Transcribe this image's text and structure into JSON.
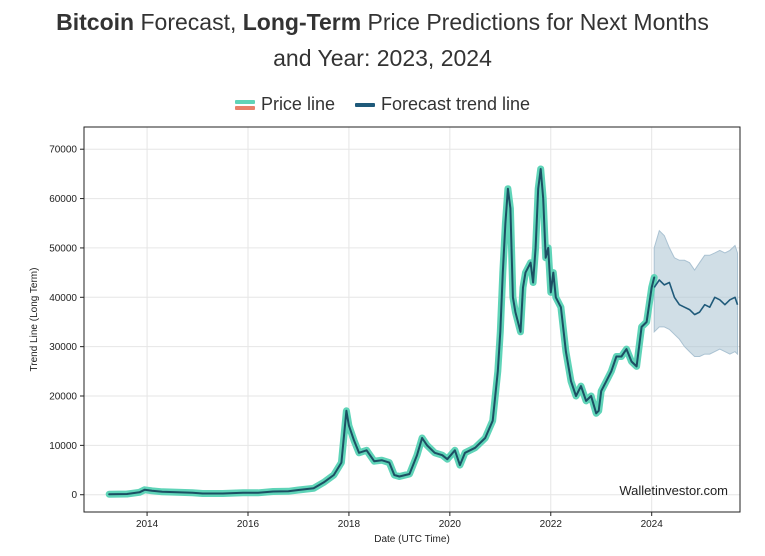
{
  "title": {
    "bold1": "Bitcoin",
    "mid1": " Forecast, ",
    "bold2": "Long-Term",
    "rest1": " Price Predictions for Next Months",
    "line2": "and Year: 2023, 2024"
  },
  "watermark": "Walletinvestor.com",
  "colors": {
    "price_outer": "#5fd4b8",
    "price_inner": "#1c4f63",
    "price_legend_top": "#5fd4b8",
    "price_legend_bottom": "#e8806a",
    "forecast_line": "#1f5a7a",
    "forecast_band": "#aac2d2"
  },
  "chart_data": {
    "type": "line",
    "title": "Bitcoin Forecast, Long-Term Price Predictions for Next Months and Year: 2023, 2024",
    "xlabel": "Date (UTC Time)",
    "ylabel": "Trend Line (Long Term)",
    "x_range": [
      2012.75,
      2025.75
    ],
    "ylim": [
      -3500,
      74500
    ],
    "xticks": [
      2014,
      2016,
      2018,
      2020,
      2022,
      2024
    ],
    "xtick_labels": [
      "2014",
      "2016",
      "2018",
      "2020",
      "2022",
      "2024"
    ],
    "yticks": [
      0,
      10000,
      20000,
      30000,
      40000,
      50000,
      60000,
      70000
    ],
    "ytick_labels": [
      "0",
      "10000",
      "20000",
      "30000",
      "40000",
      "50000",
      "60000",
      "70000"
    ],
    "grid": true,
    "legend_position": "top-center",
    "legend": [
      "Price line",
      "Forecast trend line"
    ],
    "series": [
      {
        "name": "Price line",
        "x": [
          2013.25,
          2013.6,
          2013.85,
          2013.95,
          2014.1,
          2014.3,
          2014.6,
          2014.9,
          2015.1,
          2015.5,
          2015.9,
          2016.2,
          2016.5,
          2016.8,
          2017.0,
          2017.3,
          2017.5,
          2017.7,
          2017.85,
          2017.95,
          2018.0,
          2018.1,
          2018.2,
          2018.35,
          2018.5,
          2018.65,
          2018.8,
          2018.9,
          2019.0,
          2019.2,
          2019.35,
          2019.45,
          2019.55,
          2019.7,
          2019.85,
          2019.95,
          2020.1,
          2020.2,
          2020.3,
          2020.5,
          2020.7,
          2020.85,
          2020.95,
          2021.0,
          2021.05,
          2021.1,
          2021.15,
          2021.2,
          2021.25,
          2021.3,
          2021.4,
          2021.45,
          2021.5,
          2021.6,
          2021.65,
          2021.7,
          2021.75,
          2021.8,
          2021.85,
          2021.9,
          2021.95,
          2022.0,
          2022.05,
          2022.1,
          2022.2,
          2022.3,
          2022.4,
          2022.5,
          2022.6,
          2022.7,
          2022.8,
          2022.9,
          2022.95,
          2023.0,
          2023.1,
          2023.2,
          2023.3,
          2023.4,
          2023.5,
          2023.6,
          2023.7,
          2023.8,
          2023.9,
          2024.0,
          2024.05
        ],
        "values": [
          100,
          150,
          500,
          1000,
          800,
          600,
          500,
          400,
          250,
          250,
          400,
          400,
          650,
          700,
          950,
          1300,
          2500,
          4000,
          6500,
          17000,
          14000,
          11000,
          8500,
          9000,
          6800,
          7000,
          6500,
          4000,
          3700,
          4200,
          8000,
          11500,
          10000,
          8500,
          8000,
          7200,
          9000,
          6000,
          8500,
          9500,
          11500,
          15000,
          25000,
          33000,
          45000,
          55000,
          62000,
          58000,
          40000,
          37000,
          33000,
          42000,
          45000,
          47000,
          43000,
          50000,
          62000,
          66000,
          60000,
          48000,
          50000,
          41000,
          45000,
          40000,
          38000,
          29000,
          23000,
          20000,
          22000,
          19000,
          20000,
          16500,
          17000,
          21000,
          23000,
          25000,
          28000,
          28000,
          29500,
          27000,
          26000,
          34000,
          35000,
          42000,
          44000
        ]
      },
      {
        "name": "Forecast trend line",
        "x": [
          2024.05,
          2024.15,
          2024.25,
          2024.35,
          2024.45,
          2024.55,
          2024.65,
          2024.75,
          2024.85,
          2024.95,
          2025.05,
          2025.15,
          2025.25,
          2025.35,
          2025.45,
          2025.55,
          2025.65,
          2025.7
        ],
        "values": [
          42000,
          43500,
          42500,
          43000,
          40000,
          38500,
          38000,
          37500,
          36500,
          37000,
          38500,
          38000,
          40000,
          39500,
          38500,
          39500,
          40000,
          38500
        ],
        "band_upper": [
          50000,
          53500,
          52500,
          50000,
          48000,
          47500,
          47500,
          47000,
          45500,
          47000,
          48500,
          48500,
          49000,
          49500,
          49000,
          49500,
          50500,
          49000
        ],
        "band_lower": [
          33000,
          34000,
          34000,
          33500,
          32500,
          31500,
          30000,
          29000,
          28000,
          28000,
          28500,
          28500,
          29000,
          29500,
          29000,
          28500,
          29000,
          28500
        ]
      }
    ]
  }
}
